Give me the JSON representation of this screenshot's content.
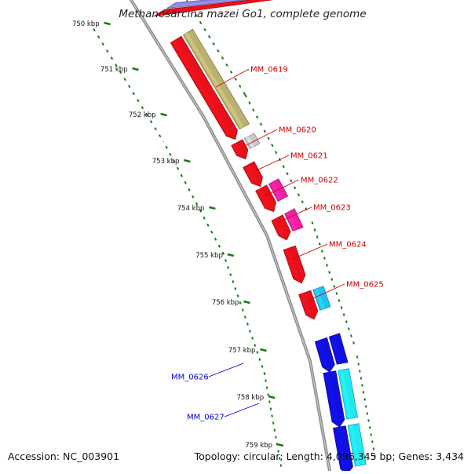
{
  "title": "Methanosarcina mazei Go1, complete genome",
  "footer": {
    "accession": "Accession: NC_003901",
    "topology": "Topology: circular; Length: 4,096,345 bp; Genes: 3,434"
  },
  "ticks": [
    "750 kbp",
    "751 kbp",
    "752 kbp",
    "753 kbp",
    "754 kbp",
    "755 kbp",
    "756 kbp",
    "757 kbp",
    "758 kbp",
    "759 kbp"
  ],
  "genes_forward": [
    {
      "label": "MM_0619",
      "color": "#e8101a",
      "feature_color": "#bab070"
    },
    {
      "label": "MM_0620",
      "color": "#e8101a",
      "feature_color": "#c8c8c8"
    },
    {
      "label": "MM_0621",
      "color": "#e8101a"
    },
    {
      "label": "MM_0622",
      "color": "#e8101a",
      "feature_color": "#f020a0"
    },
    {
      "label": "MM_0623",
      "color": "#e8101a",
      "feature_color": "#f020a0"
    },
    {
      "label": "MM_0624",
      "color": "#e8101a"
    },
    {
      "label": "MM_0625",
      "color": "#e8101a",
      "feature_color": "#20c0f0"
    }
  ],
  "genes_reverse": [
    {
      "label": "MM_0626",
      "color": "#1010e0",
      "feature_color": "#1010e0"
    },
    {
      "label": "MM_0627",
      "color": "#1010e0",
      "feature_color": "#20e8f0"
    }
  ],
  "colors": {
    "forward_label": "#cc0000",
    "reverse_label": "#0000cc",
    "backbone": "#8c8c8c",
    "tick_dots": "#1a7a1a"
  }
}
